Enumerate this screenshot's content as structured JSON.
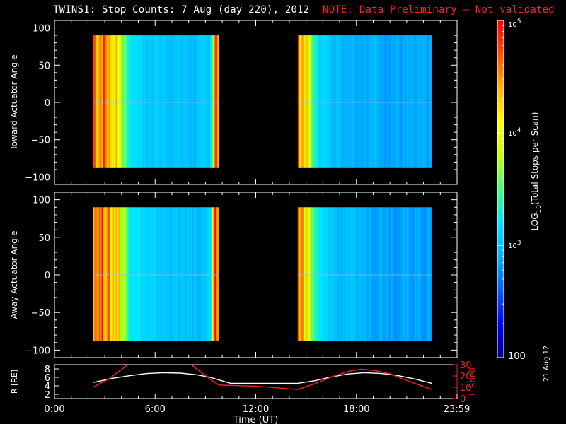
{
  "title": {
    "main": "TWINS1: Stop Counts:  7 Aug (day 220), 2012",
    "note": "NOTE: Data Preliminary – Not validated"
  },
  "stamp": "21 Aug 12",
  "colors": {
    "background": "#000000",
    "axes": "#ffffff",
    "note": "#ff2020",
    "l_shell": "#ff2020",
    "r_line": "#ffffff"
  },
  "chart_data": [
    {
      "type": "heatmap",
      "ylabel": "Toward Actuator Angle",
      "ylim": [
        -110,
        110
      ],
      "yticks": [
        "100",
        "50",
        "0",
        "−50",
        "−100"
      ],
      "ytick_values": [
        100,
        50,
        0,
        -50,
        -100
      ],
      "x_range_hours": [
        0,
        24
      ],
      "data_extent_y": [
        -88,
        90
      ],
      "data_intervals_hours": [
        [
          2.3,
          9.8
        ],
        [
          14.5,
          22.5
        ]
      ],
      "colorscale": "log",
      "zlim": [
        100,
        100000
      ],
      "profile": {
        "hours": [
          2.3,
          2.6,
          3.0,
          3.4,
          3.7,
          4.0,
          4.5,
          5.5,
          7.0,
          8.5,
          9.3,
          9.6,
          9.8,
          14.5,
          14.8,
          15.2,
          15.6,
          16.0,
          17.0,
          19.0,
          21.0,
          22.5
        ],
        "values": [
          60000,
          30000,
          50000,
          12000,
          22000,
          6000,
          1600,
          1100,
          1000,
          900,
          1200,
          50000,
          30000,
          40000,
          25000,
          6000,
          1700,
          1200,
          900,
          800,
          700,
          700
        ]
      }
    },
    {
      "type": "heatmap",
      "ylabel": "Away Actuator Angle",
      "ylim": [
        -110,
        110
      ],
      "yticks": [
        "100",
        "50",
        "0",
        "−50",
        "−100"
      ],
      "ytick_values": [
        100,
        50,
        0,
        -50,
        -100
      ],
      "x_range_hours": [
        0,
        24
      ],
      "data_extent_y": [
        -88,
        90
      ],
      "data_intervals_hours": [
        [
          2.3,
          9.8
        ],
        [
          14.5,
          22.5
        ]
      ],
      "colorscale": "log",
      "zlim": [
        100,
        100000
      ],
      "profile": {
        "hours": [
          2.3,
          2.6,
          3.0,
          3.4,
          3.7,
          4.0,
          4.5,
          5.5,
          7.0,
          8.5,
          9.3,
          9.6,
          9.8,
          14.5,
          14.8,
          15.2,
          15.6,
          16.0,
          17.0,
          19.0,
          21.0,
          22.5
        ],
        "values": [
          60000,
          35000,
          50000,
          15000,
          30000,
          8000,
          2000,
          1200,
          1000,
          900,
          1200,
          50000,
          30000,
          40000,
          25000,
          7000,
          2000,
          1300,
          900,
          800,
          700,
          700
        ]
      }
    },
    {
      "type": "line",
      "ylabel": "R [RE]",
      "y2label": "L Shell",
      "ylim": [
        1,
        9
      ],
      "y2lim": [
        0,
        30
      ],
      "yticks": [
        "2",
        "4",
        "6",
        "8"
      ],
      "y2ticks": [
        "0",
        "10",
        "20",
        "30"
      ],
      "xlabel": "Time (UT)",
      "xticks": [
        "0:00",
        "6:00",
        "12:00",
        "18:00",
        "23:59"
      ],
      "xtick_hours": [
        0,
        6,
        12,
        18,
        23.98
      ],
      "series": [
        {
          "axis": "left",
          "color": "#ffffff",
          "x_hours": [
            2.3,
            3.5,
            4.5,
            5.5,
            6.5,
            7.5,
            8.5,
            9.3,
            9.8,
            10.5,
            12.0,
            13.5,
            14.5,
            15.5,
            16.5,
            17.5,
            18.5,
            19.5,
            20.5,
            21.5,
            22.5
          ],
          "values": [
            4.8,
            5.8,
            6.4,
            6.9,
            7.1,
            7.0,
            6.6,
            6.0,
            5.4,
            4.6,
            4.6,
            4.6,
            4.6,
            5.2,
            6.1,
            6.8,
            7.1,
            6.9,
            6.4,
            5.6,
            4.6
          ]
        },
        {
          "axis": "right",
          "color": "#ff2020",
          "x_hours": [
            2.3,
            3.2,
            4.2,
            4.6,
            null,
            7.9,
            8.5,
            9.3,
            9.8,
            12.0,
            14.5,
            15.5,
            16.5,
            17.5,
            18.3,
            19.0,
            20.0,
            21.0,
            22.5
          ],
          "values": [
            10,
            17,
            28,
            33,
            null,
            33,
            26,
            17,
            12,
            11,
            8,
            13,
            19,
            24,
            26,
            25,
            22,
            16,
            8
          ]
        }
      ]
    }
  ],
  "colorbar": {
    "label_prefix": "LOG",
    "label_sub": "10",
    "label_suffix": "(Total Stops per Scan)",
    "ticks": [
      {
        "label": "10",
        "sup": "5",
        "value": 100000
      },
      {
        "label": "10",
        "sup": "4",
        "value": 10000
      },
      {
        "label": "10",
        "sup": "3",
        "value": 1000
      },
      {
        "label": "100",
        "sup": "",
        "value": 100
      }
    ],
    "stops": [
      "#00008a",
      "#0000ff",
      "#0060ff",
      "#00b4ff",
      "#00e6ff",
      "#40ff80",
      "#c8ff00",
      "#ffff00",
      "#ffb400",
      "#ff5000",
      "#ff0000"
    ]
  }
}
